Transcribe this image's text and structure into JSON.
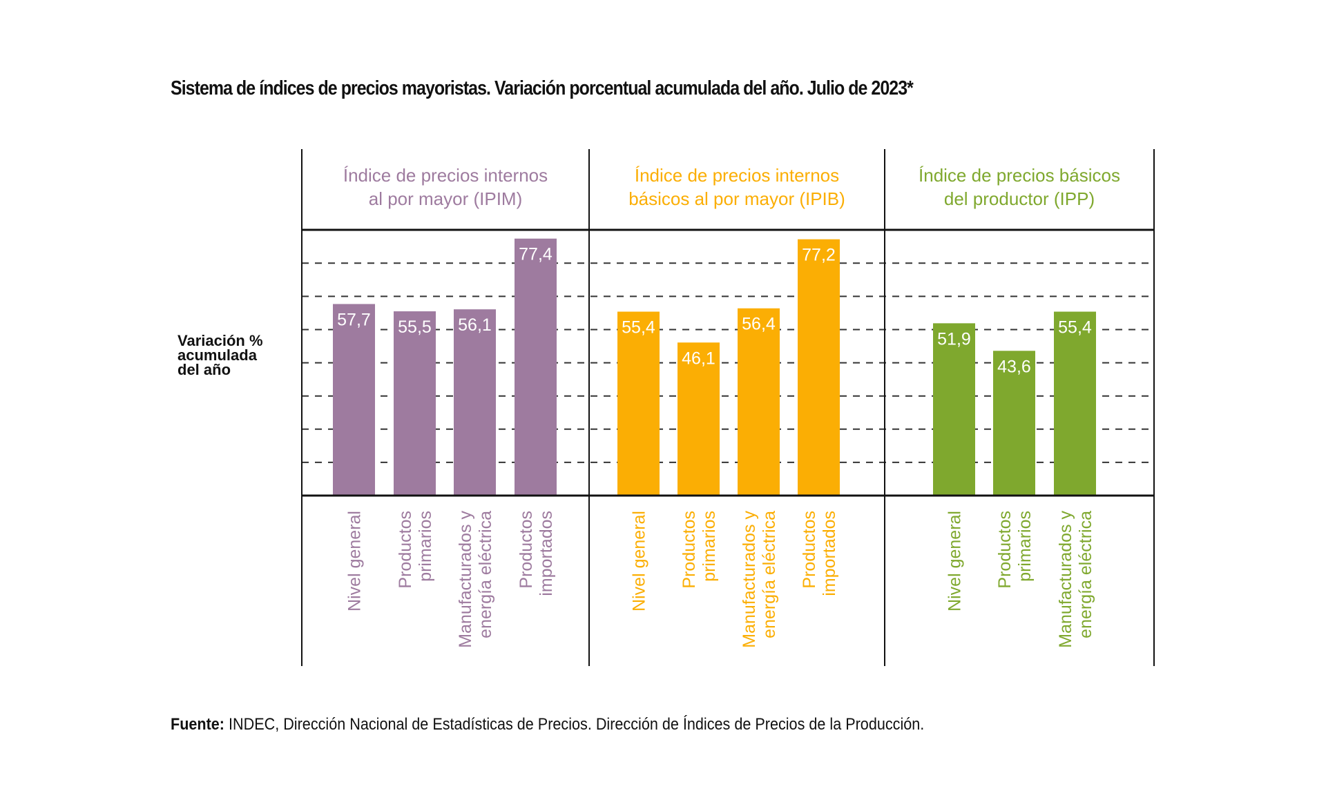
{
  "title": "Sistema de índices de precios mayoristas. Variación porcentual acumulada del año. Julio de 2023*",
  "footer": {
    "label": "Fuente:",
    "text": " INDEC, Dirección Nacional de Estadísticas de Precios. Dirección de Índices de Precios de la Producción."
  },
  "chart_data": {
    "type": "bar",
    "title": "Sistema de índices de precios mayoristas. Variación porcentual acumulada del año. Julio de 2023*",
    "ylabel": "Variación % acumulada del año",
    "xlabel": "",
    "ylim": [
      0,
      80
    ],
    "grid": true,
    "grid_step": 10,
    "groups": [
      {
        "name": "Índice de precios internos al por mayor (IPIM)",
        "name_lines": [
          "Índice de precios internos",
          "al por mayor (IPIM)"
        ],
        "color": "#9e7b9f",
        "categories": [
          [
            "Nivel general"
          ],
          [
            "Productos",
            "primarios"
          ],
          [
            "Manufacturados y",
            "energía eléctrica"
          ],
          [
            "Productos",
            "importados"
          ]
        ],
        "values": [
          57.7,
          55.5,
          56.1,
          77.4
        ],
        "labels": [
          "57,7",
          "55,5",
          "56,1",
          "77,4"
        ]
      },
      {
        "name": "Índice de precios internos básicos al por mayor (IPIB)",
        "name_lines": [
          "Índice de precios internos",
          "básicos al por mayor (IPIB)"
        ],
        "color": "#fbae04",
        "categories": [
          [
            "Nivel general"
          ],
          [
            "Productos",
            "primarios"
          ],
          [
            "Manufacturados y",
            "energía eléctrica"
          ],
          [
            "Productos",
            "importados"
          ]
        ],
        "values": [
          55.4,
          46.1,
          56.4,
          77.2
        ],
        "labels": [
          "55,4",
          "46,1",
          "56,4",
          "77,2"
        ]
      },
      {
        "name": "Índice de precios básicos del productor (IPP)",
        "name_lines": [
          "Índice de precios básicos",
          "del productor (IPP)"
        ],
        "color": "#7fa82e",
        "categories": [
          [
            "Nivel general"
          ],
          [
            "Productos",
            "primarios"
          ],
          [
            "Manufacturados y",
            "energía eléctrica"
          ]
        ],
        "values": [
          51.9,
          43.6,
          55.4
        ],
        "labels": [
          "51,9",
          "43,6",
          "55,4"
        ]
      }
    ]
  }
}
